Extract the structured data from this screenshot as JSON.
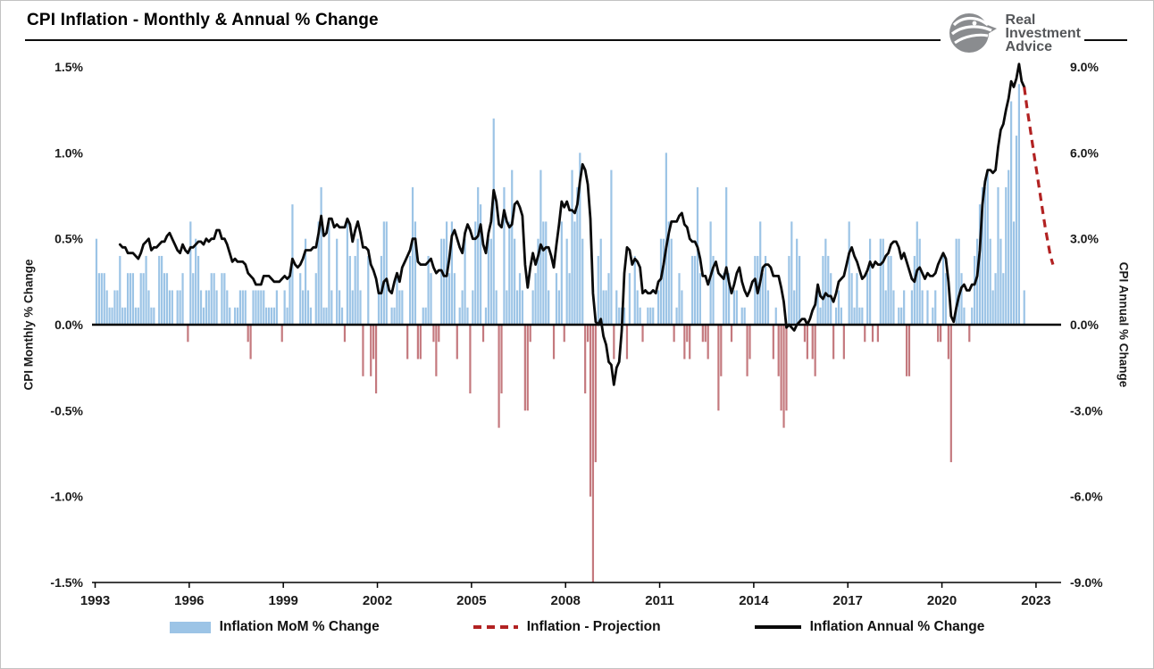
{
  "header": {
    "title": "CPI Inflation - Monthly & Annual % Change"
  },
  "logo": {
    "line1": "Real",
    "line2": "Investment",
    "line3": "Advice",
    "icon": "ria-eagle-icon",
    "color": "#8a8c8f",
    "text_color": "#55575a"
  },
  "axes": {
    "left_title": "CPI Monthly % Change",
    "right_title": "CPI Annual % Change",
    "left_ticks": [
      "1.5%",
      "1.0%",
      "0.5%",
      "0.0%",
      "-0.5%",
      "-1.0%",
      "-1.5%"
    ],
    "right_ticks": [
      "9.0%",
      "6.0%",
      "3.0%",
      "0.0%",
      "-3.0%",
      "-6.0%",
      "-9.0%"
    ],
    "x_ticks": [
      "1993",
      "1996",
      "1999",
      "2002",
      "2005",
      "2008",
      "2011",
      "2014",
      "2017",
      "2020",
      "2023"
    ]
  },
  "legend": [
    {
      "label": "Inflation MoM % Change",
      "swatch": "bar",
      "color": "#9cc4e6"
    },
    {
      "label": "Inflation - Projection",
      "swatch": "dashed-line",
      "color": "#b22222"
    },
    {
      "label": "Inflation Annual % Change",
      "swatch": "line",
      "color": "#0a0a0a"
    }
  ],
  "chart_data": {
    "type": "bar+line",
    "title": "CPI Inflation - Monthly & Annual % Change",
    "xlabel": "",
    "left_ylabel": "CPI Monthly % Change",
    "right_ylabel": "CPI Annual % Change",
    "left_ylim": [
      -1.5,
      1.5
    ],
    "right_ylim": [
      -9,
      9
    ],
    "x_start": 1993,
    "x_domain": [
      1992.9,
      2023.8
    ],
    "grid": false,
    "legend_position": "bottom",
    "frequency": "monthly",
    "colors": {
      "mom_positive": "#9cc4e6",
      "mom_negative": "#c4797e",
      "annual_line": "#0a0a0a",
      "projection": "#b22222",
      "zero_line": "#000000"
    },
    "years": [
      {
        "year": 1993,
        "mom": [
          0.5,
          0.3,
          0.3,
          0.3,
          0.2,
          0.1,
          0.1,
          0.2,
          0.2,
          0.4,
          0.1,
          0.1
        ],
        "yoy": [
          null,
          null,
          null,
          null,
          null,
          null,
          null,
          null,
          null,
          2.8,
          2.7,
          2.7
        ]
      },
      {
        "year": 1994,
        "mom": [
          0.3,
          0.3,
          0.3,
          0.1,
          0.1,
          0.3,
          0.3,
          0.4,
          0.2,
          0.1,
          0.1,
          0.0
        ],
        "yoy": [
          2.5,
          2.5,
          2.5,
          2.4,
          2.3,
          2.5,
          2.8,
          2.9,
          3.0,
          2.6,
          2.7,
          2.7
        ]
      },
      {
        "year": 1995,
        "mom": [
          0.4,
          0.4,
          0.3,
          0.3,
          0.2,
          0.2,
          0.0,
          0.2,
          0.2,
          0.3,
          0.0,
          -0.1
        ],
        "yoy": [
          2.8,
          2.9,
          2.9,
          3.1,
          3.2,
          3.0,
          2.8,
          2.6,
          2.5,
          2.8,
          2.6,
          2.5
        ]
      },
      {
        "year": 1996,
        "mom": [
          0.6,
          0.3,
          0.5,
          0.4,
          0.2,
          0.1,
          0.2,
          0.2,
          0.3,
          0.3,
          0.2,
          0.0
        ],
        "yoy": [
          2.7,
          2.7,
          2.8,
          2.9,
          2.9,
          2.8,
          3.0,
          2.9,
          3.0,
          3.0,
          3.3,
          3.3
        ]
      },
      {
        "year": 1997,
        "mom": [
          0.3,
          0.3,
          0.2,
          0.1,
          0.0,
          0.1,
          0.1,
          0.2,
          0.2,
          0.2,
          -0.1,
          -0.2
        ],
        "yoy": [
          3.0,
          3.0,
          2.8,
          2.5,
          2.2,
          2.3,
          2.2,
          2.2,
          2.2,
          2.1,
          1.8,
          1.7
        ]
      },
      {
        "year": 1998,
        "mom": [
          0.2,
          0.2,
          0.2,
          0.2,
          0.2,
          0.1,
          0.1,
          0.1,
          0.1,
          0.2,
          0.0,
          -0.1
        ],
        "yoy": [
          1.6,
          1.4,
          1.4,
          1.4,
          1.7,
          1.7,
          1.7,
          1.6,
          1.5,
          1.5,
          1.5,
          1.6
        ]
      },
      {
        "year": 1999,
        "mom": [
          0.2,
          0.1,
          0.3,
          0.7,
          0.0,
          0.0,
          0.3,
          0.2,
          0.5,
          0.2,
          0.1,
          0.0
        ],
        "yoy": [
          1.7,
          1.6,
          1.7,
          2.3,
          2.1,
          2.0,
          2.1,
          2.3,
          2.6,
          2.6,
          2.6,
          2.7
        ]
      },
      {
        "year": 2000,
        "mom": [
          0.3,
          0.6,
          0.8,
          0.1,
          0.1,
          0.6,
          0.2,
          0.0,
          0.5,
          0.2,
          0.1,
          -0.1
        ],
        "yoy": [
          2.7,
          3.2,
          3.8,
          3.1,
          3.2,
          3.7,
          3.7,
          3.4,
          3.5,
          3.4,
          3.4,
          3.4
        ]
      },
      {
        "year": 2001,
        "mom": [
          0.6,
          0.4,
          0.2,
          0.4,
          0.5,
          0.2,
          -0.3,
          0.0,
          0.4,
          -0.3,
          -0.2,
          -0.4
        ],
        "yoy": [
          3.7,
          3.5,
          2.9,
          3.3,
          3.6,
          3.2,
          2.7,
          2.7,
          2.6,
          2.1,
          1.9,
          1.6
        ]
      },
      {
        "year": 2002,
        "mom": [
          0.2,
          0.4,
          0.6,
          0.6,
          0.0,
          0.1,
          0.1,
          0.3,
          0.2,
          0.2,
          0.0,
          -0.2
        ],
        "yoy": [
          1.1,
          1.1,
          1.5,
          1.6,
          1.2,
          1.1,
          1.5,
          1.8,
          1.5,
          2.0,
          2.2,
          2.4
        ]
      },
      {
        "year": 2003,
        "mom": [
          0.4,
          0.8,
          0.6,
          -0.2,
          -0.2,
          0.1,
          0.1,
          0.4,
          0.3,
          -0.1,
          -0.3,
          -0.1
        ],
        "yoy": [
          2.6,
          3.0,
          3.0,
          2.2,
          2.1,
          2.1,
          2.1,
          2.2,
          2.3,
          2.0,
          1.8,
          1.9
        ]
      },
      {
        "year": 2004,
        "mom": [
          0.5,
          0.5,
          0.6,
          0.3,
          0.6,
          0.3,
          -0.2,
          0.1,
          0.2,
          0.5,
          0.1,
          -0.4
        ],
        "yoy": [
          1.9,
          1.7,
          1.7,
          2.3,
          3.1,
          3.3,
          3.0,
          2.7,
          2.5,
          3.2,
          3.5,
          3.3
        ]
      },
      {
        "year": 2005,
        "mom": [
          0.2,
          0.6,
          0.8,
          0.7,
          -0.1,
          0.1,
          0.5,
          0.5,
          1.2,
          0.2,
          -0.6,
          -0.4
        ],
        "yoy": [
          3.0,
          3.0,
          3.1,
          3.5,
          2.8,
          2.5,
          3.2,
          3.6,
          4.7,
          4.3,
          3.5,
          3.4
        ]
      },
      {
        "year": 2006,
        "mom": [
          0.8,
          0.2,
          0.6,
          0.9,
          0.5,
          0.2,
          0.3,
          0.2,
          -0.5,
          -0.5,
          -0.1,
          0.2
        ],
        "yoy": [
          4.0,
          3.6,
          3.4,
          3.5,
          4.2,
          4.3,
          4.1,
          3.8,
          2.1,
          1.3,
          2.0,
          2.5
        ]
      },
      {
        "year": 2007,
        "mom": [
          0.3,
          0.5,
          0.9,
          0.6,
          0.6,
          0.2,
          0.0,
          -0.2,
          0.3,
          0.2,
          0.6,
          -0.1
        ],
        "yoy": [
          2.1,
          2.4,
          2.8,
          2.6,
          2.7,
          2.7,
          2.4,
          2.0,
          2.8,
          3.5,
          4.3,
          4.1
        ]
      },
      {
        "year": 2008,
        "mom": [
          0.5,
          0.3,
          0.9,
          0.6,
          0.8,
          1.0,
          0.5,
          -0.4,
          -0.1,
          -1.0,
          -1.9,
          -0.8
        ],
        "yoy": [
          4.3,
          4.0,
          4.0,
          3.9,
          4.2,
          5.0,
          5.6,
          5.4,
          4.9,
          3.7,
          1.1,
          0.1
        ]
      },
      {
        "year": 2009,
        "mom": [
          0.4,
          0.5,
          0.2,
          0.2,
          0.3,
          0.9,
          -0.2,
          0.2,
          0.1,
          0.1,
          0.1,
          -0.2
        ],
        "yoy": [
          0.0,
          0.2,
          -0.4,
          -0.7,
          -1.3,
          -1.4,
          -2.1,
          -1.5,
          -1.3,
          -0.2,
          1.8,
          2.7
        ]
      },
      {
        "year": 2010,
        "mom": [
          0.3,
          0.0,
          0.4,
          0.2,
          0.1,
          -0.1,
          0.0,
          0.1,
          0.1,
          0.1,
          0.0,
          0.2
        ],
        "yoy": [
          2.6,
          2.1,
          2.3,
          2.2,
          2.0,
          1.1,
          1.2,
          1.1,
          1.1,
          1.2,
          1.1,
          1.5
        ]
      },
      {
        "year": 2011,
        "mom": [
          0.5,
          0.5,
          1.0,
          0.6,
          0.5,
          -0.1,
          0.1,
          0.3,
          0.2,
          -0.2,
          -0.1,
          -0.2
        ],
        "yoy": [
          1.6,
          2.1,
          2.7,
          3.2,
          3.6,
          3.6,
          3.6,
          3.8,
          3.9,
          3.5,
          3.4,
          3.0
        ]
      },
      {
        "year": 2012,
        "mom": [
          0.4,
          0.4,
          0.8,
          0.3,
          -0.1,
          -0.1,
          -0.2,
          0.6,
          0.4,
          0.0,
          -0.5,
          -0.3
        ],
        "yoy": [
          2.9,
          2.9,
          2.7,
          2.3,
          1.7,
          1.7,
          1.4,
          1.7,
          2.0,
          2.2,
          1.8,
          1.7
        ]
      },
      {
        "year": 2013,
        "mom": [
          0.3,
          0.8,
          0.3,
          -0.1,
          0.2,
          0.2,
          0.0,
          0.1,
          0.1,
          -0.3,
          -0.2,
          0.0
        ],
        "yoy": [
          1.6,
          2.0,
          1.5,
          1.1,
          1.4,
          1.8,
          2.0,
          1.5,
          1.2,
          1.0,
          1.2,
          1.5
        ]
      },
      {
        "year": 2014,
        "mom": [
          0.4,
          0.4,
          0.6,
          0.3,
          0.4,
          0.2,
          0.0,
          -0.2,
          0.1,
          -0.3,
          -0.5,
          -0.6
        ],
        "yoy": [
          1.6,
          1.1,
          1.5,
          2.0,
          2.1,
          2.1,
          2.0,
          1.7,
          1.7,
          1.7,
          1.3,
          0.8
        ]
      },
      {
        "year": 2015,
        "mom": [
          -0.5,
          0.4,
          0.6,
          0.2,
          0.5,
          0.4,
          0.0,
          -0.1,
          -0.2,
          0.0,
          -0.2,
          -0.3
        ],
        "yoy": [
          -0.1,
          0.0,
          -0.1,
          -0.2,
          0.0,
          0.1,
          0.2,
          0.2,
          0.0,
          0.2,
          0.5,
          0.7
        ]
      },
      {
        "year": 2016,
        "mom": [
          0.2,
          0.1,
          0.4,
          0.5,
          0.4,
          0.3,
          -0.2,
          0.1,
          0.2,
          0.1,
          -0.2,
          0.0
        ],
        "yoy": [
          1.4,
          1.0,
          0.9,
          1.1,
          1.0,
          1.0,
          0.8,
          1.1,
          1.5,
          1.6,
          1.7,
          2.1
        ]
      },
      {
        "year": 2017,
        "mom": [
          0.6,
          0.3,
          0.1,
          0.3,
          0.1,
          0.1,
          -0.1,
          0.3,
          0.5,
          -0.1,
          0.0,
          -0.1
        ],
        "yoy": [
          2.5,
          2.7,
          2.4,
          2.2,
          1.9,
          1.6,
          1.7,
          1.9,
          2.2,
          2.0,
          2.2,
          2.1
        ]
      },
      {
        "year": 2018,
        "mom": [
          0.5,
          0.5,
          0.2,
          0.4,
          0.4,
          0.2,
          0.0,
          0.1,
          0.1,
          0.2,
          -0.3,
          -0.3
        ],
        "yoy": [
          2.1,
          2.2,
          2.4,
          2.5,
          2.8,
          2.9,
          2.9,
          2.7,
          2.3,
          2.5,
          2.2,
          1.9
        ]
      },
      {
        "year": 2019,
        "mom": [
          0.2,
          0.4,
          0.6,
          0.5,
          0.2,
          0.0,
          0.2,
          0.0,
          0.1,
          0.2,
          -0.1,
          -0.1
        ],
        "yoy": [
          1.6,
          1.5,
          1.9,
          2.0,
          1.8,
          1.6,
          1.8,
          1.7,
          1.7,
          1.8,
          2.1,
          2.3
        ]
      },
      {
        "year": 2020,
        "mom": [
          0.4,
          0.3,
          -0.2,
          -0.8,
          0.0,
          0.5,
          0.5,
          0.3,
          0.1,
          0.0,
          -0.1,
          0.1
        ],
        "yoy": [
          2.5,
          2.3,
          1.5,
          0.3,
          0.1,
          0.6,
          1.0,
          1.3,
          1.4,
          1.2,
          1.2,
          1.4
        ]
      },
      {
        "year": 2021,
        "mom": [
          0.4,
          0.5,
          0.7,
          0.8,
          0.8,
          0.9,
          0.5,
          0.2,
          0.3,
          0.8,
          0.5,
          0.3
        ],
        "yoy": [
          1.4,
          1.7,
          2.6,
          4.2,
          5.0,
          5.4,
          5.4,
          5.3,
          5.4,
          6.2,
          6.8,
          7.0
        ]
      },
      {
        "year": 2022,
        "mom": [
          0.8,
          0.9,
          1.3,
          0.6,
          1.1,
          1.4,
          0.0,
          0.2
        ],
        "yoy": [
          7.5,
          7.9,
          8.5,
          8.3,
          8.6,
          9.1,
          8.5,
          8.3
        ]
      }
    ],
    "projection": {
      "name": "Inflation - Projection",
      "start_after": "2022-08",
      "values": [
        7.6,
        7.0,
        6.4,
        5.8,
        5.2,
        4.6,
        4.0,
        3.4,
        2.9,
        2.4,
        2.1
      ]
    }
  }
}
